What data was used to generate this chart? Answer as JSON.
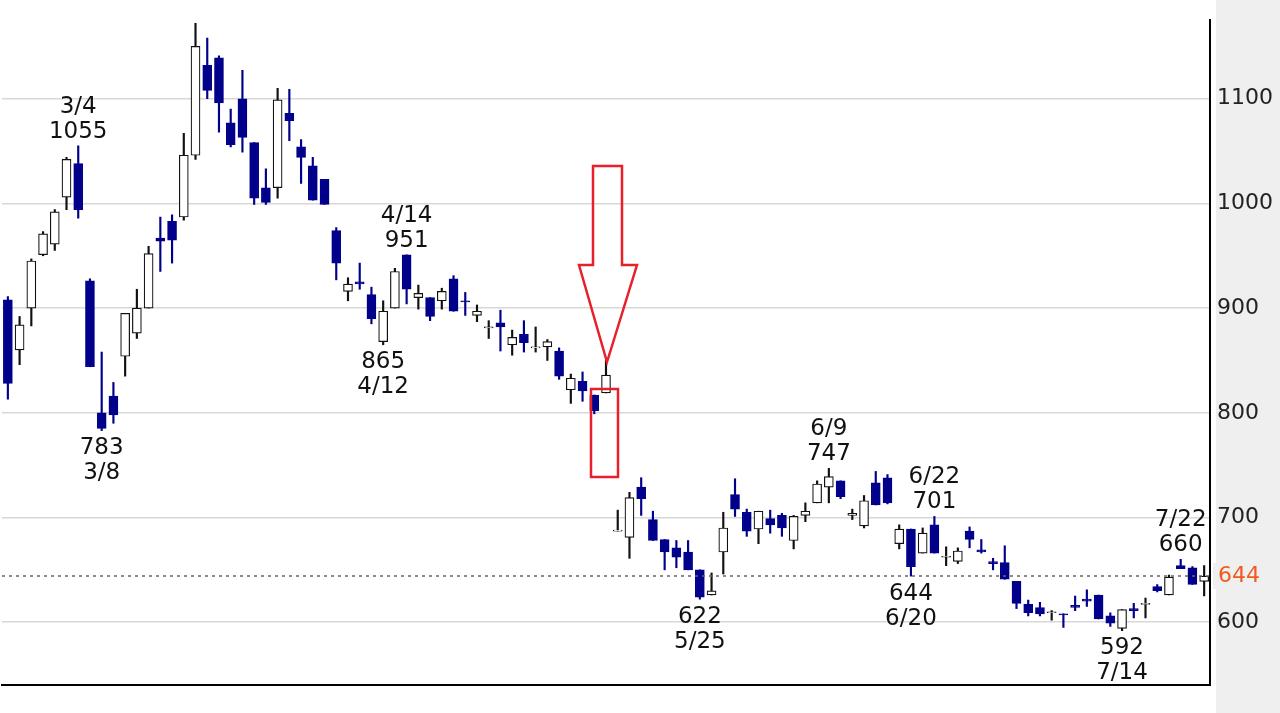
{
  "chart_data": {
    "type": "candlestick",
    "categories": [
      null,
      null,
      null,
      null,
      null,
      null,
      null,
      null,
      null,
      null,
      null,
      null,
      null,
      null,
      null,
      null,
      null,
      null,
      null,
      null,
      null,
      null,
      null,
      null,
      null,
      null,
      null,
      null,
      null,
      null,
      null,
      null,
      null,
      null,
      null,
      null,
      null,
      null,
      null,
      null,
      null,
      null,
      null,
      null,
      null,
      null,
      null,
      null,
      null,
      null,
      null,
      null,
      null,
      null,
      null,
      null,
      null,
      null,
      null,
      null,
      null,
      null,
      null,
      null,
      null,
      null,
      null,
      null,
      null,
      null,
      null,
      null,
      null,
      null,
      null,
      null,
      null,
      null,
      null,
      null,
      null,
      null,
      null,
      null,
      null,
      null,
      null,
      null,
      null,
      null,
      null,
      null,
      null,
      null,
      null,
      null,
      null,
      null,
      null,
      null,
      null,
      null,
      null
    ],
    "ohlc": [
      [
        908,
        911,
        813,
        828
      ],
      [
        860,
        892,
        846,
        884
      ],
      [
        900,
        947,
        883,
        945
      ],
      [
        951,
        973,
        950,
        971
      ],
      [
        961,
        994,
        955,
        992
      ],
      [
        1006,
        1044,
        994,
        1042
      ],
      [
        1038,
        1055,
        986,
        994
      ],
      [
        926,
        928,
        844,
        844
      ],
      [
        800,
        858,
        783,
        785
      ],
      [
        816,
        829,
        790,
        798
      ],
      [
        854,
        895,
        835,
        895
      ],
      [
        876,
        918,
        871,
        900
      ],
      [
        900,
        959,
        900,
        952
      ],
      [
        967,
        987,
        935,
        964
      ],
      [
        983,
        989,
        943,
        965
      ],
      [
        987,
        1067,
        984,
        1046
      ],
      [
        1046,
        1172,
        1042,
        1150
      ],
      [
        1132,
        1158,
        1100,
        1108
      ],
      [
        1139,
        1141,
        1068,
        1096
      ],
      [
        1077,
        1090,
        1054,
        1056
      ],
      [
        1100,
        1127,
        1049,
        1063
      ],
      [
        1058,
        1058,
        999,
        1005
      ],
      [
        1015,
        1033,
        999,
        1001
      ],
      [
        1015,
        1110,
        1005,
        1099
      ],
      [
        1086,
        1109,
        1060,
        1079
      ],
      [
        1054,
        1061,
        1019,
        1044
      ],
      [
        1036,
        1044,
        1003,
        1003
      ],
      [
        1023,
        1023,
        999,
        999
      ],
      [
        974,
        977,
        927,
        943
      ],
      [
        916,
        929,
        907,
        923
      ],
      [
        925,
        943,
        918,
        923
      ],
      [
        913,
        920,
        885,
        890
      ],
      [
        868,
        907,
        865,
        897
      ],
      [
        900,
        938,
        900,
        935
      ],
      [
        951,
        951,
        904,
        918
      ],
      [
        910,
        922,
        899,
        914
      ],
      [
        910,
        910,
        888,
        892
      ],
      [
        907,
        919,
        899,
        916
      ],
      [
        928,
        931,
        897,
        897
      ],
      [
        907,
        915,
        893,
        906
      ],
      [
        893,
        903,
        887,
        897
      ],
      [
        881,
        888,
        871,
        882
      ],
      [
        886,
        898,
        859,
        882
      ],
      [
        865,
        879,
        855,
        872
      ],
      [
        875,
        888,
        858,
        867
      ],
      [
        862,
        882,
        858,
        863
      ],
      [
        863,
        870,
        850,
        868
      ],
      [
        859,
        862,
        832,
        835
      ],
      [
        822,
        837,
        809,
        833
      ],
      [
        830,
        839,
        811,
        821
      ],
      [
        817,
        817,
        799,
        802
      ],
      [
        819,
        850,
        819,
        836
      ],
      [
        687,
        707,
        687,
        688
      ],
      [
        681,
        724,
        661,
        719
      ],
      [
        729,
        738,
        702,
        718
      ],
      [
        698,
        706,
        678,
        678
      ],
      [
        679,
        679,
        650,
        667
      ],
      [
        671,
        678,
        652,
        662
      ],
      [
        667,
        678,
        650,
        650
      ],
      [
        650,
        650,
        622,
        624
      ],
      [
        626,
        647,
        626,
        630
      ],
      [
        667,
        705,
        646,
        690
      ],
      [
        722,
        737,
        701,
        708
      ],
      [
        705,
        708,
        682,
        687
      ],
      [
        689,
        706,
        675,
        706
      ],
      [
        699,
        707,
        685,
        693
      ],
      [
        702,
        704,
        682,
        690
      ],
      [
        678,
        702,
        670,
        701
      ],
      [
        702,
        714,
        696,
        706
      ],
      [
        714,
        735,
        714,
        732
      ],
      [
        729,
        747,
        714,
        739
      ],
      [
        735,
        735,
        718,
        720
      ],
      [
        702,
        708,
        698,
        704
      ],
      [
        692,
        721,
        690,
        716
      ],
      [
        733,
        744,
        712,
        712
      ],
      [
        738,
        741,
        713,
        714
      ],
      [
        675,
        693,
        670,
        689
      ],
      [
        689,
        689,
        644,
        653
      ],
      [
        666,
        690,
        666,
        685
      ],
      [
        693,
        701,
        666,
        666
      ],
      [
        662,
        672,
        654,
        663
      ],
      [
        658,
        671,
        656,
        668
      ],
      [
        687,
        691,
        671,
        679
      ],
      [
        669,
        679,
        666,
        667
      ],
      [
        658,
        661,
        650,
        656
      ],
      [
        657,
        673,
        641,
        641
      ],
      [
        639,
        639,
        613,
        618
      ],
      [
        617,
        621,
        606,
        609
      ],
      [
        614,
        619,
        606,
        608
      ],
      [
        609,
        611,
        602,
        610
      ],
      [
        608,
        608,
        595,
        607
      ],
      [
        616,
        625,
        611,
        614
      ],
      [
        622,
        631,
        615,
        620
      ],
      [
        626,
        626,
        603,
        603
      ],
      [
        606,
        609,
        596,
        599
      ],
      [
        594,
        612,
        592,
        612
      ],
      [
        613,
        618,
        604,
        611
      ],
      [
        617,
        623,
        604,
        618
      ],
      [
        634,
        636,
        629,
        630
      ],
      [
        626,
        645,
        626,
        643
      ],
      [
        654,
        660,
        651,
        651
      ],
      [
        652,
        653,
        636,
        636
      ],
      [
        639,
        654,
        625,
        644
      ]
    ],
    "ylim": [
      540,
      1175
    ],
    "yticks": [
      600,
      700,
      800,
      900,
      1000,
      1100
    ],
    "grid": "y",
    "ref_lines": [
      {
        "axis": "y",
        "value": 644,
        "label": "644",
        "line_style": "dotted"
      }
    ],
    "annotations": [
      {
        "text": "3/4\n1055",
        "y": 1055
      },
      {
        "text": "783\n3/8",
        "y": 783
      },
      {
        "text": "865\n4/12",
        "y": 865
      },
      {
        "text": "4/14\n951",
        "y": 951
      },
      {
        "text": "622\n5/25",
        "y": 622
      },
      {
        "text": "6/9\n747",
        "y": 747
      },
      {
        "text": "644\n6/20",
        "y": 644
      },
      {
        "text": "6/22\n701",
        "y": 701
      },
      {
        "text": "592\n7/14",
        "y": 592
      },
      {
        "text": "7/22\n660",
        "y": 660
      }
    ]
  }
}
